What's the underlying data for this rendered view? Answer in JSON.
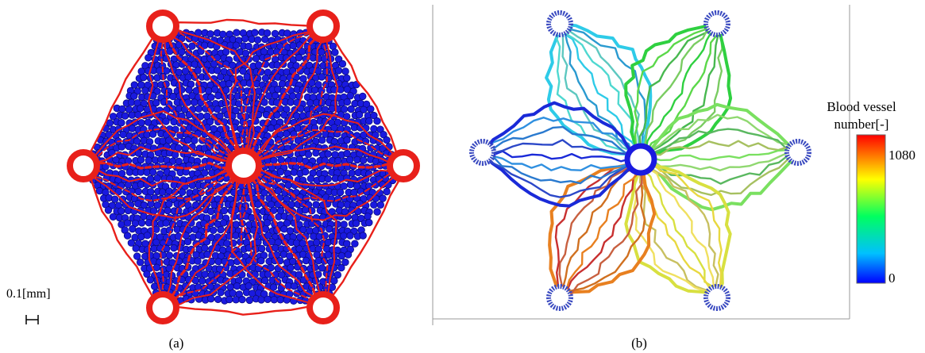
{
  "panel_a": {
    "caption": "(a)",
    "scale_label": "0.1[mm]"
  },
  "panel_b": {
    "caption": "(b)",
    "colorbar": {
      "title_line1": "Blood vessel",
      "title_line2": "number[-]",
      "max_label": "1080",
      "min_label": "0",
      "colors": [
        "#0000ff",
        "#00c0ff",
        "#00ff60",
        "#ffff00",
        "#ff8000",
        "#ff0000"
      ]
    }
  },
  "colors": {
    "vessel_red": "#e8201a",
    "cell_blue": "#1a1adf",
    "cell_dark": "#0a0a80",
    "frame_gray": "#9a9a9a"
  }
}
